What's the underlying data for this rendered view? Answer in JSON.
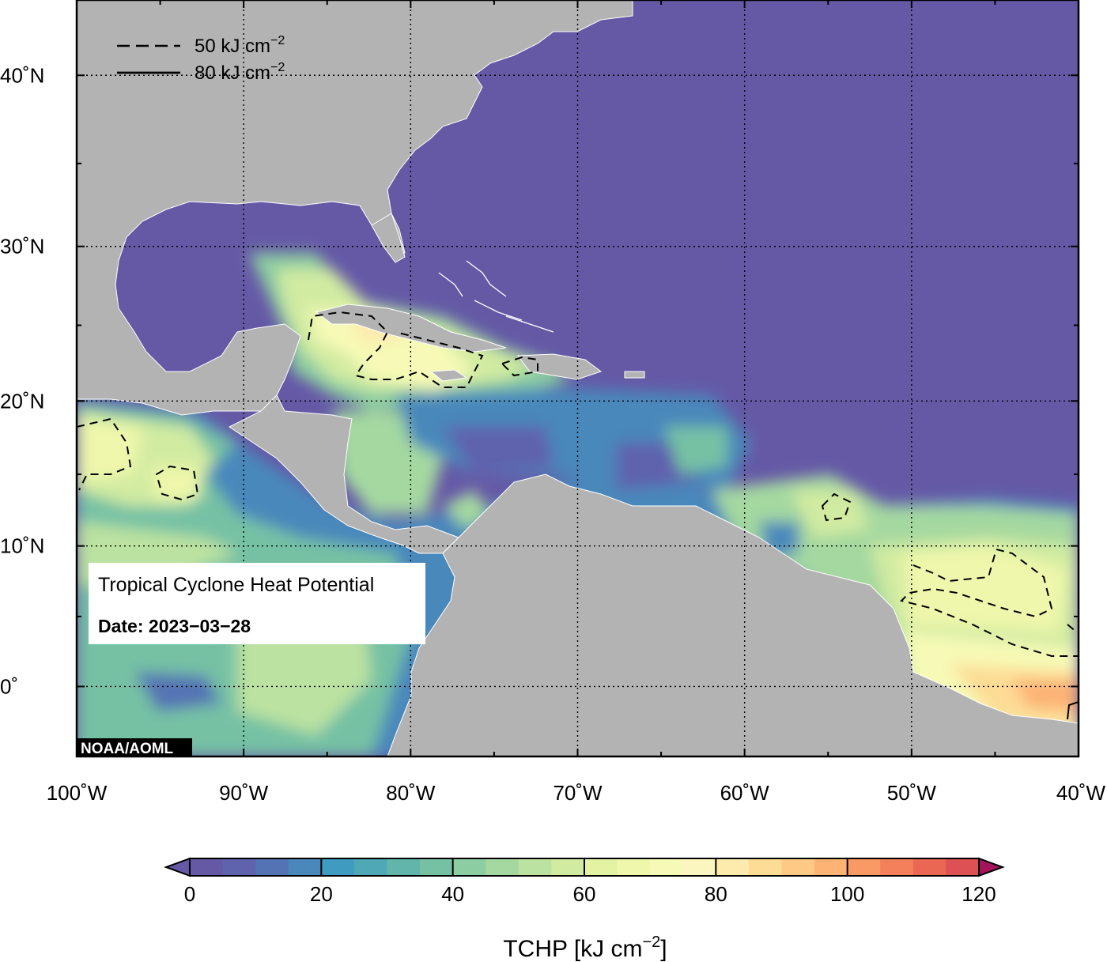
{
  "map": {
    "extent": {
      "lon_min": -100,
      "lon_max": -40,
      "lat_min": -5,
      "lat_max": 44
    },
    "grid": true,
    "lon_labels": [
      "100˚W",
      "90˚W",
      "80˚W",
      "70˚W",
      "60˚W",
      "50˚W",
      "40˚W"
    ],
    "lat_labels": [
      "40˚N",
      "30˚N",
      "20˚N",
      "10˚N",
      "0˚"
    ],
    "colors": {
      "land": "#b3b3b3",
      "ocean_low": "#6559a6",
      "frame": "#000000"
    }
  },
  "legend": {
    "dashed": {
      "value": "50 kJ cm",
      "sup": "−2"
    },
    "solid": {
      "value": "80 kJ cm",
      "sup": "−2"
    }
  },
  "info_box": {
    "title": "Tropical Cyclone Heat Potential",
    "date": "Date: 2023−03−28"
  },
  "credit": "NOAA/AOML",
  "colorbar": {
    "ticks": [
      "0",
      "20",
      "40",
      "60",
      "80",
      "100",
      "120"
    ],
    "min": 0,
    "max": 120,
    "step": 5,
    "title": "TCHP [kJ cm",
    "title_sup": "−2",
    "title_end": "]",
    "colors": [
      "#6559a6",
      "#5f62ad",
      "#5473b4",
      "#4a88bb",
      "#3f9bbf",
      "#4fa8b5",
      "#62b5ab",
      "#76c1a4",
      "#8ccda1",
      "#a4d8a0",
      "#bbe2a0",
      "#d1eba1",
      "#e4f2a4",
      "#eef7ab",
      "#f6fab6",
      "#fbf5c0",
      "#fdeaad",
      "#fddc95",
      "#fdc985",
      "#fcb374",
      "#f99a65",
      "#f3805a",
      "#ea6754",
      "#dd5053",
      "#cc3a54",
      "#b82656",
      "#a3145a"
    ]
  }
}
